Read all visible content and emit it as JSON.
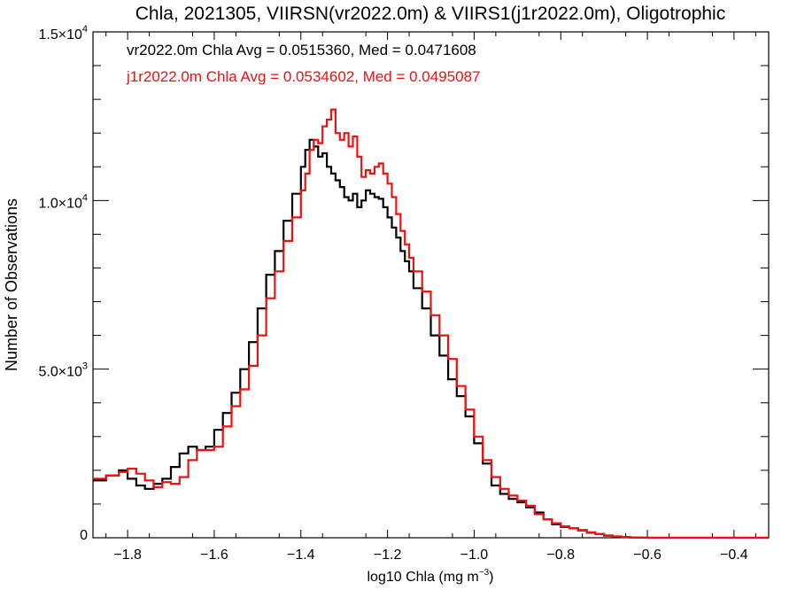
{
  "chart_data": {
    "type": "line",
    "title": "Chla, 2021305, VIIRSN(vr2022.0m) & VIIRS1(j1r2022.0m), Oligotrophic",
    "xlabel": {
      "main": "log10 Chla (mg m",
      "sup": "−3",
      "close": ")"
    },
    "ylabel": "Number of Observations",
    "xlim": [
      -1.88,
      -0.32
    ],
    "ylim": [
      0,
      15000
    ],
    "xticks": [
      {
        "value": -1.8,
        "label": "−1.8"
      },
      {
        "value": -1.6,
        "label": "−1.6"
      },
      {
        "value": -1.4,
        "label": "−1.4"
      },
      {
        "value": -1.2,
        "label": "−1.2"
      },
      {
        "value": -1.0,
        "label": "−1.0"
      },
      {
        "value": -0.8,
        "label": "−0.8"
      },
      {
        "value": -0.6,
        "label": "−0.6"
      },
      {
        "value": -0.4,
        "label": "−0.4"
      }
    ],
    "yticks": [
      {
        "value": 0,
        "mant": "0",
        "exp": ""
      },
      {
        "value": 5000,
        "mant": "5.0×10",
        "exp": "3"
      },
      {
        "value": 10000,
        "mant": "1.0×10",
        "exp": "4"
      },
      {
        "value": 15000,
        "mant": "1.5×10",
        "exp": "4"
      }
    ],
    "annotations": [
      {
        "text": "vr2022.0m Chla Avg = 0.0515360, Med = 0.0471608",
        "color": "#000000"
      },
      {
        "text": "j1r2022.0m Chla Avg = 0.0534602, Med = 0.0495087",
        "color": "#ee1111"
      }
    ],
    "series": [
      {
        "color": "#000000",
        "x": [
          -1.88,
          -1.85,
          -1.82,
          -1.8,
          -1.78,
          -1.76,
          -1.74,
          -1.72,
          -1.7,
          -1.68,
          -1.66,
          -1.64,
          -1.62,
          -1.6,
          -1.58,
          -1.56,
          -1.54,
          -1.52,
          -1.5,
          -1.48,
          -1.46,
          -1.44,
          -1.42,
          -1.4,
          -1.39,
          -1.38,
          -1.37,
          -1.36,
          -1.35,
          -1.34,
          -1.33,
          -1.32,
          -1.31,
          -1.3,
          -1.29,
          -1.28,
          -1.27,
          -1.26,
          -1.25,
          -1.24,
          -1.23,
          -1.22,
          -1.21,
          -1.2,
          -1.19,
          -1.18,
          -1.17,
          -1.16,
          -1.15,
          -1.14,
          -1.12,
          -1.1,
          -1.08,
          -1.06,
          -1.04,
          -1.02,
          -1.0,
          -0.98,
          -0.96,
          -0.94,
          -0.92,
          -0.9,
          -0.88,
          -0.86,
          -0.84,
          -0.82,
          -0.8,
          -0.78,
          -0.76,
          -0.74,
          -0.72,
          -0.7,
          -0.68,
          -0.66,
          -0.64,
          -0.62,
          -0.6,
          -0.55,
          -0.5,
          -0.45,
          -0.4,
          -0.35,
          -0.32
        ],
        "values": [
          1700,
          1850,
          2000,
          1750,
          1550,
          1450,
          1600,
          1750,
          2100,
          2500,
          2700,
          2600,
          2700,
          3200,
          3700,
          4300,
          5000,
          5800,
          6800,
          7800,
          8500,
          9400,
          10200,
          11000,
          11500,
          11800,
          11600,
          11300,
          11400,
          11000,
          10800,
          10600,
          10400,
          10100,
          10000,
          10200,
          9800,
          10000,
          10300,
          10200,
          10100,
          10050,
          9800,
          9500,
          9200,
          8900,
          8500,
          8200,
          7900,
          7400,
          6800,
          6000,
          5400,
          4700,
          4200,
          3600,
          2800,
          2200,
          1550,
          1300,
          1150,
          1050,
          900,
          750,
          550,
          400,
          320,
          280,
          220,
          150,
          110,
          60,
          30,
          20,
          10,
          5,
          0,
          0,
          0,
          0,
          0,
          0,
          0
        ]
      },
      {
        "color": "#ee1111",
        "x": [
          -1.88,
          -1.85,
          -1.82,
          -1.8,
          -1.78,
          -1.76,
          -1.74,
          -1.72,
          -1.7,
          -1.68,
          -1.66,
          -1.64,
          -1.62,
          -1.6,
          -1.58,
          -1.56,
          -1.54,
          -1.52,
          -1.5,
          -1.48,
          -1.46,
          -1.44,
          -1.42,
          -1.4,
          -1.39,
          -1.38,
          -1.37,
          -1.36,
          -1.35,
          -1.34,
          -1.33,
          -1.32,
          -1.31,
          -1.3,
          -1.29,
          -1.28,
          -1.27,
          -1.26,
          -1.25,
          -1.24,
          -1.23,
          -1.22,
          -1.21,
          -1.2,
          -1.19,
          -1.18,
          -1.17,
          -1.16,
          -1.15,
          -1.14,
          -1.12,
          -1.1,
          -1.08,
          -1.06,
          -1.04,
          -1.02,
          -1.0,
          -0.98,
          -0.96,
          -0.94,
          -0.92,
          -0.9,
          -0.88,
          -0.86,
          -0.84,
          -0.82,
          -0.8,
          -0.78,
          -0.76,
          -0.74,
          -0.72,
          -0.7,
          -0.68,
          -0.66,
          -0.64,
          -0.62,
          -0.6,
          -0.55,
          -0.5,
          -0.45,
          -0.4,
          -0.35,
          -0.32
        ],
        "values": [
          1750,
          1850,
          1950,
          2050,
          1900,
          1700,
          1500,
          1650,
          1600,
          1800,
          2300,
          2600,
          2600,
          2700,
          3300,
          3900,
          4400,
          5100,
          6000,
          7100,
          7900,
          8800,
          9500,
          10300,
          10800,
          11500,
          11800,
          11700,
          12200,
          12400,
          12700,
          12000,
          11800,
          12000,
          11600,
          11900,
          11300,
          10700,
          10900,
          10800,
          11000,
          11100,
          10800,
          10500,
          10100,
          9600,
          9100,
          8700,
          8300,
          7900,
          7300,
          6600,
          6000,
          5300,
          4500,
          3800,
          3000,
          2300,
          1800,
          1450,
          1250,
          1100,
          950,
          700,
          550,
          430,
          340,
          280,
          230,
          160,
          110,
          70,
          40,
          20,
          10,
          5,
          0,
          0,
          0,
          0,
          0,
          0,
          0
        ]
      }
    ]
  }
}
